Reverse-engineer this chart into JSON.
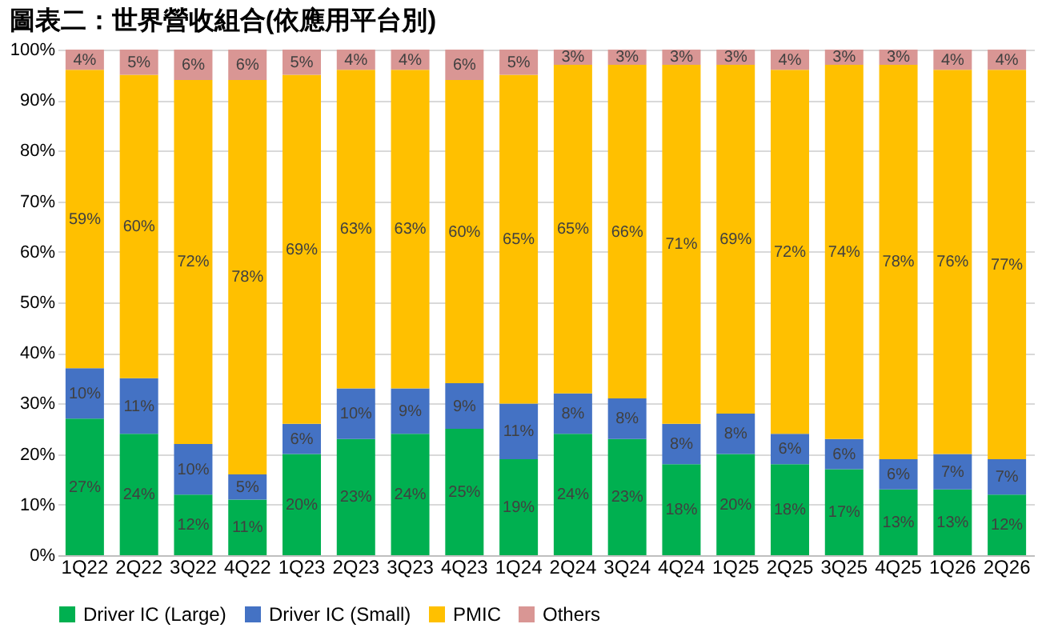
{
  "chart_data": {
    "type": "bar",
    "title": "圖表二：世界營收組合(依應用平台別)",
    "stacked": true,
    "categories": [
      "1Q22",
      "2Q22",
      "3Q22",
      "4Q22",
      "1Q23",
      "2Q23",
      "3Q23",
      "4Q23",
      "1Q24",
      "2Q24",
      "3Q24",
      "4Q24",
      "1Q25",
      "2Q25",
      "3Q25",
      "4Q25",
      "1Q26",
      "2Q26"
    ],
    "series": [
      {
        "name": "Driver IC (Large)",
        "color": "#00b050",
        "values": [
          27,
          24,
          12,
          11,
          20,
          23,
          24,
          25,
          19,
          24,
          23,
          18,
          20,
          18,
          17,
          13,
          13,
          12
        ],
        "value_labels": [
          "27%",
          "24%",
          "12%",
          "11%",
          "20%",
          "23%",
          "24%",
          "25%",
          "19%",
          "24%",
          "23%",
          "18%",
          "20%",
          "18%",
          "17%",
          "13%",
          "13%",
          "12%"
        ]
      },
      {
        "name": "Driver IC (Small)",
        "color": "#4472c4",
        "values": [
          10,
          11,
          10,
          5,
          6,
          10,
          9,
          9,
          11,
          8,
          8,
          8,
          8,
          6,
          6,
          6,
          7,
          7
        ],
        "value_labels": [
          "10%",
          "11%",
          "10%",
          "5%",
          "6%",
          "10%",
          "9%",
          "9%",
          "11%",
          "8%",
          "8%",
          "8%",
          "8%",
          "6%",
          "6%",
          "6%",
          "7%",
          "7%"
        ]
      },
      {
        "name": "PMIC",
        "color": "#ffc000",
        "values": [
          59,
          60,
          72,
          78,
          69,
          63,
          63,
          60,
          65,
          65,
          66,
          71,
          69,
          72,
          74,
          78,
          76,
          77
        ],
        "value_labels": [
          "59%",
          "60%",
          "72%",
          "78%",
          "69%",
          "63%",
          "63%",
          "60%",
          "65%",
          "65%",
          "66%",
          "71%",
          "69%",
          "72%",
          "74%",
          "78%",
          "76%",
          "77%"
        ]
      },
      {
        "name": "Others",
        "color": "#d99694",
        "values": [
          4,
          5,
          6,
          6,
          5,
          4,
          4,
          6,
          5,
          3,
          3,
          3,
          3,
          4,
          3,
          3,
          4,
          4
        ],
        "value_labels": [
          "4%",
          "5%",
          "6%",
          "6%",
          "5%",
          "4%",
          "4%",
          "6%",
          "5%",
          "3%",
          "3%",
          "3%",
          "3%",
          "4%",
          "3%",
          "3%",
          "4%",
          "4%"
        ]
      }
    ],
    "ylim": [
      0,
      100
    ],
    "yticks": [
      {
        "value": 0,
        "label": "0%"
      },
      {
        "value": 10,
        "label": "10%"
      },
      {
        "value": 20,
        "label": "20%"
      },
      {
        "value": 30,
        "label": "30%"
      },
      {
        "value": 40,
        "label": "40%"
      },
      {
        "value": 50,
        "label": "50%"
      },
      {
        "value": 60,
        "label": "60%"
      },
      {
        "value": 70,
        "label": "70%"
      },
      {
        "value": 80,
        "label": "80%"
      },
      {
        "value": 90,
        "label": "90%"
      },
      {
        "value": 100,
        "label": "100%"
      }
    ],
    "grid": "y",
    "legend": "bottom"
  }
}
